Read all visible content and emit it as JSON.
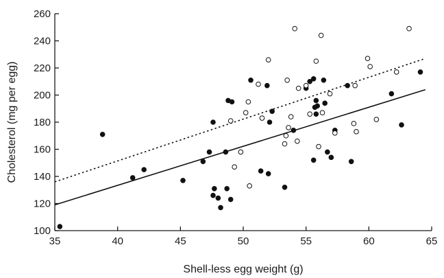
{
  "chart_data": {
    "type": "scatter",
    "title": "",
    "xlabel": "Shell-less egg weight (g)",
    "ylabel": "Cholesterol (mg per egg)",
    "xlim": [
      35,
      65
    ],
    "ylim": [
      100,
      260
    ],
    "x_ticks": [
      35,
      40,
      45,
      50,
      55,
      60,
      65
    ],
    "y_ticks": [
      100,
      120,
      140,
      160,
      180,
      200,
      220,
      240,
      260
    ],
    "grid": false,
    "legend": "none",
    "series": [
      {
        "marker": "filled-circle",
        "points": [
          [
            35.4,
            103
          ],
          [
            38.8,
            171
          ],
          [
            41.2,
            139
          ],
          [
            42.1,
            145
          ],
          [
            45.2,
            137
          ],
          [
            46.8,
            151
          ],
          [
            47.3,
            158
          ],
          [
            47.6,
            180
          ],
          [
            47.6,
            126
          ],
          [
            47.7,
            131
          ],
          [
            48.0,
            124
          ],
          [
            48.2,
            117
          ],
          [
            48.6,
            158
          ],
          [
            48.7,
            131
          ],
          [
            48.8,
            196
          ],
          [
            49.0,
            123
          ],
          [
            49.1,
            195
          ],
          [
            50.6,
            211
          ],
          [
            51.4,
            144
          ],
          [
            51.9,
            207
          ],
          [
            52.0,
            142
          ],
          [
            52.1,
            180
          ],
          [
            52.3,
            188
          ],
          [
            53.3,
            132
          ],
          [
            54.0,
            174
          ],
          [
            55.0,
            205
          ],
          [
            55.3,
            210
          ],
          [
            55.6,
            212
          ],
          [
            55.6,
            152
          ],
          [
            55.7,
            191
          ],
          [
            55.8,
            186
          ],
          [
            55.8,
            196
          ],
          [
            55.9,
            192
          ],
          [
            56.4,
            211
          ],
          [
            56.5,
            194
          ],
          [
            56.7,
            158
          ],
          [
            57.0,
            154
          ],
          [
            57.3,
            174
          ],
          [
            58.3,
            207
          ],
          [
            58.6,
            151
          ],
          [
            61.8,
            201
          ],
          [
            62.6,
            178
          ],
          [
            64.1,
            217
          ]
        ]
      },
      {
        "marker": "open-circle",
        "points": [
          [
            49.0,
            181
          ],
          [
            49.3,
            147
          ],
          [
            49.8,
            158
          ],
          [
            50.2,
            187
          ],
          [
            50.4,
            195
          ],
          [
            50.5,
            133
          ],
          [
            51.2,
            208
          ],
          [
            51.5,
            183
          ],
          [
            52.0,
            226
          ],
          [
            53.3,
            164
          ],
          [
            53.4,
            170
          ],
          [
            53.5,
            211
          ],
          [
            53.6,
            176
          ],
          [
            53.8,
            184
          ],
          [
            54.1,
            249
          ],
          [
            54.3,
            166
          ],
          [
            54.4,
            205
          ],
          [
            55.0,
            207
          ],
          [
            55.3,
            186
          ],
          [
            55.8,
            225
          ],
          [
            56.0,
            162
          ],
          [
            56.2,
            244
          ],
          [
            56.3,
            187
          ],
          [
            56.9,
            201
          ],
          [
            57.3,
            172
          ],
          [
            58.8,
            179
          ],
          [
            58.9,
            207
          ],
          [
            59.0,
            173
          ],
          [
            59.9,
            227
          ],
          [
            60.1,
            221
          ],
          [
            60.6,
            182
          ],
          [
            62.2,
            217
          ],
          [
            63.2,
            249
          ]
        ]
      }
    ],
    "lines": [
      {
        "style": "solid",
        "from": [
          35,
          119
        ],
        "to": [
          64.5,
          204
        ]
      },
      {
        "style": "dotted",
        "from": [
          35,
          136
        ],
        "to": [
          64.5,
          227
        ]
      }
    ]
  }
}
